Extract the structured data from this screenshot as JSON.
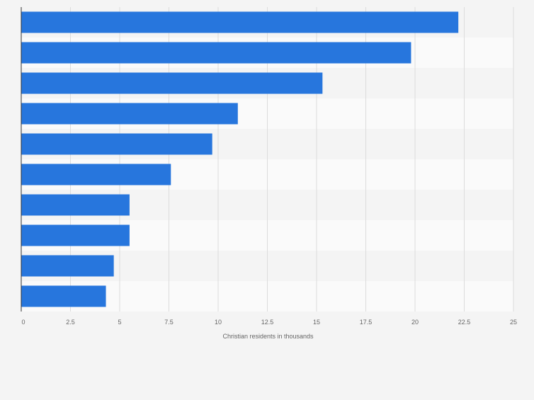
{
  "chart_data": {
    "type": "bar",
    "orientation": "horizontal",
    "categories": [
      "",
      "",
      "",
      "",
      "",
      "",
      "",
      "",
      "",
      ""
    ],
    "values": [
      22.2,
      19.8,
      15.3,
      11.0,
      9.7,
      7.6,
      5.5,
      5.5,
      4.7,
      4.3
    ],
    "xlabel": "Christian residents in thousands",
    "ylabel": "",
    "xlim": [
      0,
      25
    ],
    "x_ticks": [
      "0",
      "2.5",
      "5",
      "7.5",
      "10",
      "12.5",
      "15",
      "17.5",
      "20",
      "22.5",
      "25"
    ],
    "grid": "vertical",
    "legend": "none",
    "colors": {
      "bar": "#2776dd",
      "band_light": "#fafafa",
      "band_dark": "#f4f4f4",
      "grid": "#dcdcdc",
      "axis": "#333333",
      "text": "#666666"
    }
  }
}
